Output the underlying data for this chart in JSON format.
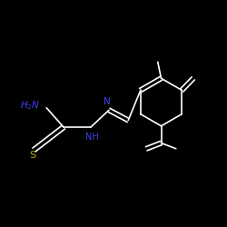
{
  "bg_color": "#000000",
  "line_color": "#ffffff",
  "atom_color_N": "#4040ee",
  "atom_color_S": "#bbaa00",
  "figsize": [
    2.5,
    2.5
  ],
  "dpi": 100,
  "xlim": [
    0,
    10
  ],
  "ylim": [
    0,
    10
  ]
}
